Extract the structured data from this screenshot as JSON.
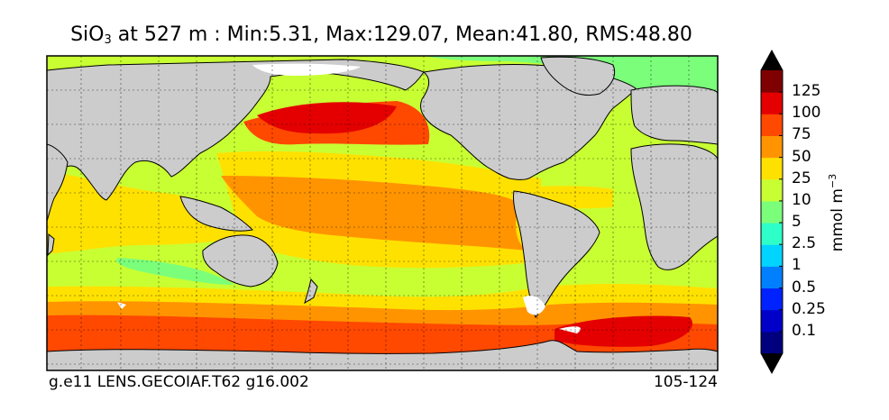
{
  "title": {
    "variable_main": "SiO",
    "variable_sub": "3",
    "rest": " at 527 m : Min:5.31, Max:129.07, Mean:41.80, RMS:48.80"
  },
  "footer": {
    "case_name": "g.e11 LENS.GECOIAF.T62 g16.002",
    "years": "105-124"
  },
  "colorbar": {
    "units_main": "mmol m",
    "units_sup": "−3",
    "ticks": [
      "0.1",
      "0.25",
      "0.5",
      "1",
      "2.5",
      "5",
      "10",
      "25",
      "50",
      "75",
      "100",
      "125"
    ],
    "colors": [
      "#00007f",
      "#0000c8",
      "#0022ff",
      "#0080ff",
      "#00d4ff",
      "#2effc8",
      "#7bff7b",
      "#c8ff33",
      "#ffe100",
      "#ff9400",
      "#ff4800",
      "#e40000",
      "#7f0000"
    ]
  },
  "map": {
    "land_color": "#cccccc",
    "grid": "dotted",
    "regions": [
      {
        "name": "north-pacific-subarctic",
        "level": "100-125"
      },
      {
        "name": "north-pacific-gyre",
        "level": "75-100"
      },
      {
        "name": "tropical-pacific",
        "level": "50-75"
      },
      {
        "name": "indian-ocean-south",
        "level": "25-50"
      },
      {
        "name": "southern-ocean",
        "level": "75-100"
      },
      {
        "name": "weddell-sea",
        "level": "100-125"
      },
      {
        "name": "atlantic",
        "level": "10-25"
      },
      {
        "name": "arctic",
        "level": "5-10"
      }
    ]
  }
}
